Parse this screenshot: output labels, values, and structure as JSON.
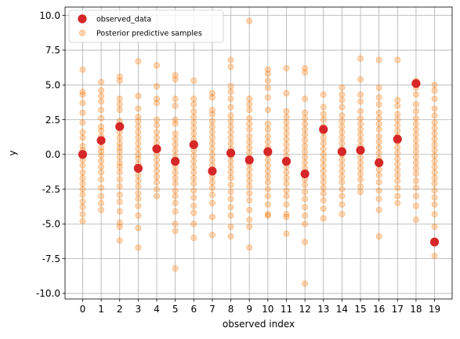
{
  "chart_data": {
    "type": "scatter",
    "title": "",
    "xlabel": "observed index",
    "ylabel": "y",
    "xlim": [
      -0.95,
      19.95
    ],
    "ylim": [
      -10.4,
      10.6
    ],
    "xticks": [
      0,
      1,
      2,
      3,
      4,
      5,
      6,
      7,
      8,
      9,
      10,
      11,
      12,
      13,
      14,
      15,
      16,
      17,
      18,
      19
    ],
    "yticks": [
      -10.0,
      -7.5,
      -5.0,
      -2.5,
      0.0,
      2.5,
      5.0,
      7.5,
      10.0
    ],
    "grid": true,
    "legend_position": "top-left",
    "series": [
      {
        "name": "observed_data",
        "color": "#d62728",
        "x": [
          0,
          1,
          2,
          3,
          4,
          5,
          6,
          7,
          8,
          9,
          10,
          11,
          12,
          13,
          14,
          15,
          16,
          17,
          18,
          19
        ],
        "y": [
          0.0,
          1.0,
          2.0,
          -1.0,
          0.4,
          -0.5,
          0.7,
          -1.2,
          0.1,
          -0.4,
          0.2,
          -0.5,
          -1.4,
          1.8,
          0.2,
          0.3,
          -0.6,
          1.1,
          5.1,
          -6.3
        ]
      },
      {
        "name": "Posterior predictive samples",
        "color": "#ff7f0e",
        "opacity": 0.3,
        "x_index": [
          0,
          1,
          2,
          3,
          4,
          5,
          6,
          7,
          8,
          9,
          10,
          11,
          12,
          13,
          14,
          15,
          16,
          17,
          18,
          19
        ],
        "y_samples": [
          [
            6.1,
            4.5,
            4.3,
            3.7,
            3.0,
            2.3,
            1.6,
            1.2,
            0.6,
            0.3,
            0.0,
            -0.4,
            -0.8,
            -1.3,
            -1.7,
            -2.1,
            -2.5,
            -2.9,
            -3.4,
            -3.8,
            -4.3,
            -4.8
          ],
          [
            5.2,
            4.6,
            4.2,
            3.8,
            3.2,
            2.6,
            2.0,
            1.7,
            1.3,
            0.9,
            0.5,
            0.2,
            -0.1,
            -0.5,
            -0.9,
            -1.3,
            -1.8,
            -2.4,
            -3.0,
            -3.5,
            -4.0
          ],
          [
            5.6,
            5.3,
            4.0,
            3.6,
            3.2,
            2.4,
            2.0,
            1.6,
            1.2,
            0.8,
            0.5,
            0.2,
            -0.2,
            -0.6,
            -0.9,
            -1.3,
            -1.8,
            -2.3,
            -2.9,
            -3.4,
            -4.1,
            -4.9,
            -5.2,
            -6.2
          ],
          [
            6.7,
            4.2,
            3.3,
            2.7,
            2.4,
            2.0,
            1.6,
            1.2,
            0.8,
            0.4,
            0.0,
            -0.3,
            -0.7,
            -1.1,
            -1.5,
            -1.9,
            -2.3,
            -2.8,
            -3.2,
            -3.7,
            -4.4,
            -5.3,
            -6.7
          ],
          [
            6.4,
            4.9,
            4.0,
            3.7,
            2.5,
            2.1,
            1.6,
            1.2,
            0.8,
            0.4,
            0.0,
            -0.4,
            -0.8,
            -1.2,
            -1.6,
            -2.0,
            -2.5,
            -3.0
          ],
          [
            5.7,
            5.4,
            4.0,
            3.5,
            2.5,
            2.2,
            1.5,
            1.1,
            0.7,
            0.3,
            -0.1,
            -0.5,
            -0.9,
            -1.3,
            -1.7,
            -2.1,
            -2.6,
            -3.0,
            -3.5,
            -4.1,
            -5.0,
            -5.5,
            -8.2
          ],
          [
            5.3,
            4.0,
            3.6,
            3.1,
            2.7,
            2.3,
            1.9,
            1.5,
            1.1,
            0.7,
            0.3,
            -0.1,
            -0.5,
            -0.9,
            -1.3,
            -1.7,
            -2.1,
            -2.6,
            -3.1,
            -3.7,
            -4.2,
            -5.0,
            -6.0
          ],
          [
            4.4,
            4.1,
            3.2,
            2.9,
            2.4,
            2.0,
            1.6,
            1.2,
            0.8,
            0.4,
            0.0,
            -0.4,
            -0.8,
            -1.2,
            -1.6,
            -2.0,
            -2.4,
            -2.9,
            -3.5,
            -4.5,
            -5.8
          ],
          [
            6.8,
            6.3,
            4.9,
            4.5,
            4.0,
            3.4,
            2.8,
            2.4,
            2.0,
            1.6,
            1.2,
            0.8,
            0.4,
            -0.1,
            -0.5,
            -0.9,
            -1.3,
            -1.7,
            -2.2,
            -2.7,
            -3.2,
            -3.8,
            -4.4,
            -5.2,
            -5.9
          ],
          [
            9.6,
            4.0,
            3.6,
            3.2,
            2.6,
            2.2,
            1.8,
            1.3,
            0.9,
            0.5,
            0.1,
            -0.3,
            -0.7,
            -1.1,
            -1.5,
            -1.9,
            -2.3,
            -2.8,
            -3.3,
            -4.0,
            -4.7,
            -5.2,
            -6.7
          ],
          [
            6.1,
            5.8,
            5.3,
            4.8,
            4.1,
            3.2,
            2.2,
            1.8,
            1.3,
            0.9,
            0.5,
            0.0,
            -0.4,
            -0.8,
            -1.2,
            -1.6,
            -2.0,
            -2.5,
            -3.0,
            -3.6,
            -4.3,
            -4.4
          ],
          [
            6.2,
            4.4,
            3.1,
            2.7,
            2.3,
            1.9,
            1.5,
            1.1,
            0.7,
            0.3,
            -0.1,
            -0.5,
            -0.9,
            -1.3,
            -1.7,
            -2.1,
            -2.6,
            -3.0,
            -3.6,
            -4.3,
            -4.5,
            -5.7
          ],
          [
            6.2,
            5.9,
            4.0,
            3.0,
            2.6,
            2.2,
            1.8,
            1.4,
            1.0,
            0.6,
            0.2,
            -0.2,
            -0.6,
            -1.0,
            -1.4,
            -1.8,
            -2.2,
            -2.7,
            -3.2,
            -3.8,
            -4.4,
            -5.0,
            -6.3,
            -9.3
          ],
          [
            4.3,
            3.4,
            2.9,
            2.5,
            2.0,
            1.6,
            1.2,
            0.8,
            0.4,
            0.0,
            -0.4,
            -0.8,
            -1.2,
            -1.6,
            -2.0,
            -2.4,
            -2.8,
            -3.3,
            -3.9,
            -4.6
          ],
          [
            4.8,
            4.3,
            3.9,
            3.4,
            2.8,
            2.4,
            2.0,
            1.6,
            1.2,
            0.8,
            0.4,
            0.0,
            -0.4,
            -0.8,
            -1.2,
            -1.6,
            -2.0,
            -2.5,
            -3.0,
            -3.6,
            -4.3
          ],
          [
            6.9,
            5.4,
            4.3,
            3.8,
            3.1,
            2.6,
            2.2,
            1.8,
            1.4,
            1.0,
            0.6,
            0.2,
            -0.2,
            -0.6,
            -1.0,
            -1.4,
            -1.8,
            -2.3,
            -2.7
          ],
          [
            6.8,
            4.8,
            4.1,
            3.6,
            3.0,
            2.6,
            2.2,
            1.8,
            1.3,
            0.9,
            0.5,
            0.1,
            -0.3,
            -0.7,
            -1.1,
            -1.5,
            -2.0,
            -2.6,
            -3.2,
            -4.0,
            -5.9
          ],
          [
            6.8,
            3.9,
            3.5,
            2.9,
            2.5,
            2.1,
            1.7,
            1.3,
            0.9,
            0.5,
            0.1,
            -0.3,
            -0.7,
            -1.1,
            -1.5,
            -1.9,
            -2.4,
            -3.0,
            -3.5
          ],
          [
            5.3,
            4.8,
            4.3,
            3.6,
            3.1,
            2.6,
            2.2,
            1.8,
            1.4,
            1.0,
            0.6,
            0.2,
            -0.2,
            -0.6,
            -1.0,
            -1.4,
            -1.9,
            -2.4,
            -3.0,
            -3.7,
            -4.7
          ],
          [
            5.0,
            4.6,
            4.0,
            3.3,
            2.8,
            2.3,
            1.9,
            1.5,
            1.1,
            0.7,
            0.3,
            -0.1,
            -0.5,
            -0.9,
            -1.3,
            -1.7,
            -2.1,
            -2.6,
            -3.1,
            -3.6,
            -4.3,
            -5.2,
            -7.3
          ]
        ]
      }
    ]
  }
}
